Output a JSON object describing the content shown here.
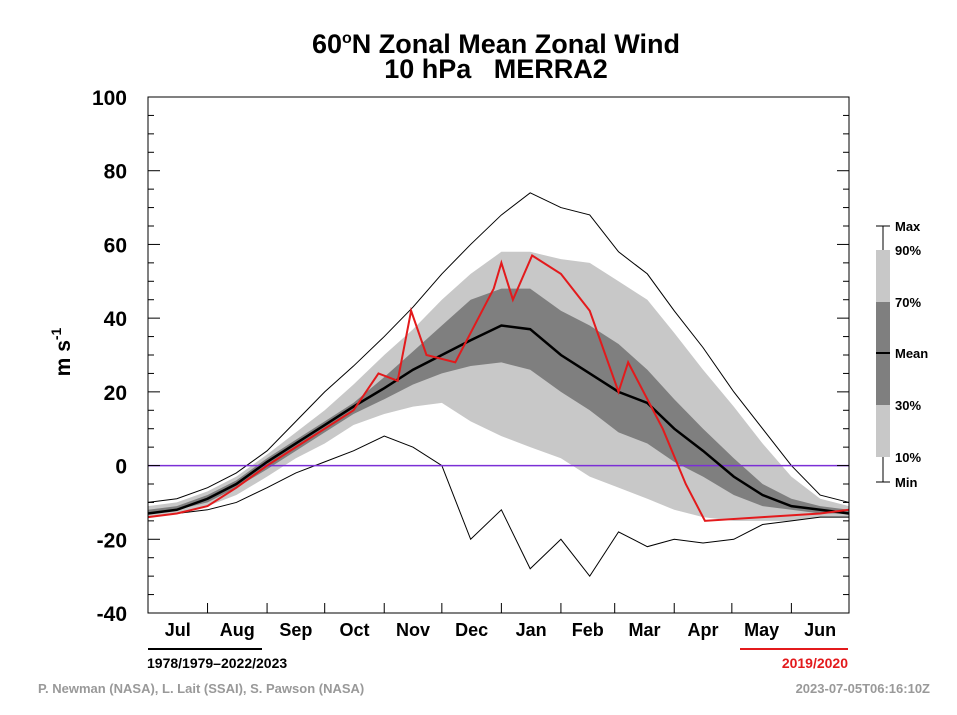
{
  "chart_data": {
    "type": "line",
    "title_line1_main": "60",
    "title_line1_sup": "o",
    "title_line1_rest": "N Zonal Mean Zonal Wind",
    "title_line2": "10 hPa   MERRA2",
    "ylabel_main": "m s",
    "ylabel_sup": "-1",
    "ylim": [
      -40,
      100
    ],
    "yticks": [
      "100",
      "80",
      "60",
      "40",
      "20",
      "0",
      "-20",
      "-40"
    ],
    "months": [
      "Jul",
      "Aug",
      "Sep",
      "Oct",
      "Nov",
      "Dec",
      "Jan",
      "Feb",
      "Mar",
      "Apr",
      "May",
      "Jun"
    ],
    "zero_line_color": "#7b2fd6",
    "x_day_of_year_from_jul1": [
      0,
      15,
      31,
      46,
      62,
      77,
      92,
      107,
      123,
      138,
      153,
      168,
      184,
      199,
      215,
      230,
      245,
      260,
      274,
      289,
      305,
      320,
      335,
      350,
      365
    ],
    "series": [
      {
        "key": "max",
        "values": [
          -10,
          -9,
          -6,
          -2,
          4,
          12,
          20,
          27,
          35,
          43,
          52,
          60,
          68,
          74,
          70,
          68,
          58,
          52,
          42,
          32,
          20,
          10,
          0,
          -8,
          -10
        ]
      },
      {
        "key": "p90",
        "values": [
          -11,
          -10,
          -7,
          -3,
          3,
          9,
          15,
          22,
          30,
          37,
          45,
          52,
          58,
          58,
          56,
          55,
          50,
          45,
          36,
          26,
          16,
          6,
          -3,
          -9,
          -11
        ]
      },
      {
        "key": "p70",
        "values": [
          -12,
          -11,
          -8,
          -4,
          2,
          7,
          12,
          17,
          24,
          31,
          38,
          45,
          48,
          48,
          42,
          38,
          33,
          26,
          18,
          10,
          2,
          -5,
          -9,
          -11,
          -12
        ]
      },
      {
        "key": "mean",
        "values": [
          -13,
          -12,
          -9,
          -5,
          1,
          6,
          11,
          16,
          21,
          26,
          30,
          34,
          38,
          37,
          30,
          25,
          20,
          17,
          10,
          4,
          -3,
          -8,
          -11,
          -12,
          -13
        ]
      },
      {
        "key": "p30",
        "values": [
          -13,
          -12,
          -10,
          -6,
          -1,
          4,
          9,
          14,
          18,
          22,
          25,
          27,
          28,
          26,
          20,
          15,
          9,
          6,
          1,
          -3,
          -8,
          -11,
          -12,
          -13,
          -13
        ]
      },
      {
        "key": "p10",
        "values": [
          -14,
          -13,
          -11,
          -8,
          -3,
          2,
          6,
          11,
          14,
          16,
          17,
          12,
          8,
          5,
          2,
          -3,
          -6,
          -9,
          -12,
          -14,
          -15,
          -15,
          -15,
          -14,
          -14
        ]
      },
      {
        "key": "min",
        "values": [
          -14,
          -13,
          -12,
          -10,
          -6,
          -2,
          1,
          4,
          8,
          5,
          0,
          -20,
          -12,
          -28,
          -20,
          -30,
          -18,
          -22,
          -20,
          -21,
          -20,
          -16,
          -15,
          -14,
          -14
        ]
      },
      {
        "key": "year",
        "color": "#e31a1c",
        "values": [
          -14,
          -13,
          -11,
          -6,
          0,
          5,
          10,
          15,
          25,
          23,
          42,
          30,
          28,
          48,
          55,
          45,
          57,
          52,
          42,
          20,
          28,
          10,
          -5,
          -15,
          -14,
          -13,
          -12
        ]
      }
    ],
    "year_x": [
      0,
      15,
      31,
      46,
      62,
      77,
      92,
      107,
      120,
      130,
      137,
      145,
      160,
      180,
      184,
      190,
      200,
      215,
      230,
      245,
      250,
      268,
      280,
      290,
      320,
      350,
      365
    ],
    "legend": {
      "items": [
        "Max",
        "90%",
        "70%",
        "Mean",
        "30%",
        "10%",
        "Min"
      ],
      "colors": {
        "light": "#c8c8c8",
        "dark": "#7f7f7f",
        "mean": "#000000"
      }
    },
    "grid": false
  },
  "footer": {
    "climatology_period": "1978/1979–2022/2023",
    "highlight_year": "2019/2020",
    "highlight_color": "#e31a1c",
    "credits": "P. Newman (NASA), L. Lait (SSAI), S. Pawson (NASA)",
    "timestamp": "2023-07-05T06:16:10Z"
  }
}
